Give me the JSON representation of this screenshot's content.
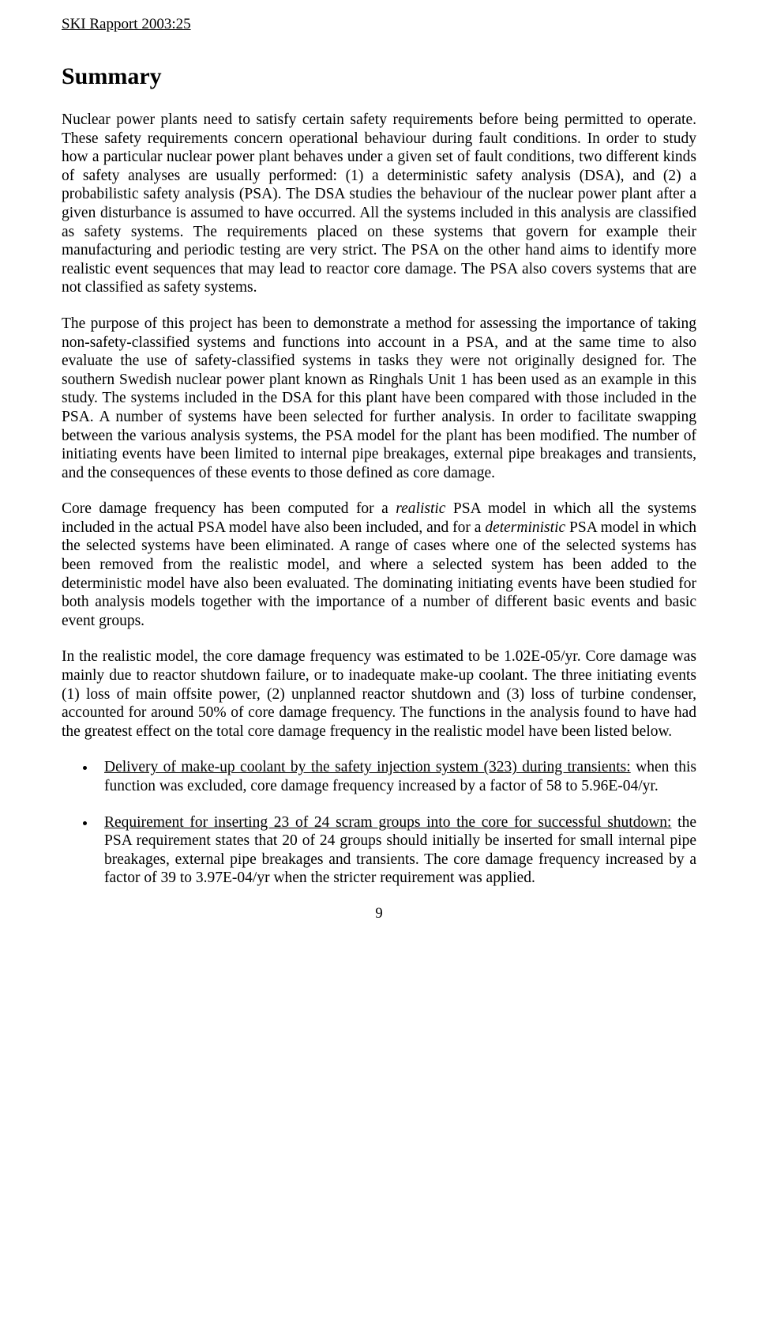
{
  "header": "SKI Rapport 2003:25",
  "title": "Summary",
  "p1": "Nuclear power plants need to satisfy certain safety requirements before being permitted to operate. These safety requirements concern operational behaviour during fault conditions. In order to study how a particular nuclear power plant behaves under a given set of fault conditions, two different kinds of safety analyses are usually performed: (1) a deterministic safety analysis (DSA), and (2) a probabilistic safety analysis (PSA). The DSA studies the behaviour of the nuclear power plant after a given disturbance is assumed to have occurred. All the systems included in this analysis are classified as safety systems. The requirements placed on these systems that govern for example their manufacturing and periodic testing are very strict. The PSA on the other hand aims to identify more realistic event sequences that may lead to reactor core damage. The PSA also covers systems that are not classified as safety systems.",
  "p2": "The purpose of this project has been to demonstrate a method for assessing the importance of taking non-safety-classified systems and functions into account in a PSA, and at the same time to also evaluate the use of safety-classified systems in tasks they were not originally designed for. The southern Swedish nuclear power plant known as Ringhals Unit 1 has been used as an example in this study. The systems included in the DSA for this plant have been compared with those included in the PSA. A number of systems have been selected for further analysis. In order to facilitate swapping between the various analysis systems, the PSA model for the plant has been modified. The number of initiating events have been limited to internal pipe breakages, external pipe breakages and transients, and the consequences of these events to those defined as core damage.",
  "p3a": "Core damage frequency has been computed for a ",
  "p3_realistic": "realistic",
  "p3b": " PSA model in which all the systems included in the actual PSA model have also been included, and for a ",
  "p3_deterministic": "deterministic",
  "p3c": " PSA model in which the selected systems have been eliminated. A range of cases where one of the selected systems has been removed from the realistic model, and where a selected system has been added to the deterministic model have also been evaluated. The dominating initiating events have been studied for both analysis models together with the importance of a number of different basic events and basic event groups.",
  "p4": "In the realistic model, the core damage frequency was estimated to be 1.02E-05/yr. Core damage was mainly due to reactor shutdown failure, or to inadequate make-up coolant. The three initiating events (1) loss of main offsite power, (2) unplanned reactor shutdown and (3) loss of turbine condenser, accounted for around 50% of core damage frequency. The functions in the analysis found to have had the greatest effect on the total core damage frequency in the realistic model have been listed below.",
  "bullet1_lead": "Delivery of make-up coolant by the safety injection system (323) during transients:",
  "bullet1_rest": " when this function was excluded, core damage frequency increased by a factor of 58 to 5.96E-04/yr.",
  "bullet2_lead": "Requirement for inserting 23 of 24 scram groups into the core for successful shutdown:",
  "bullet2_rest": " the PSA requirement states that 20 of 24 groups should initially be inserted for small internal pipe breakages, external pipe breakages and transients. The core damage frequency increased by a factor of 39 to 3.97E-04/yr when the stricter requirement was applied.",
  "pagenum": "9"
}
